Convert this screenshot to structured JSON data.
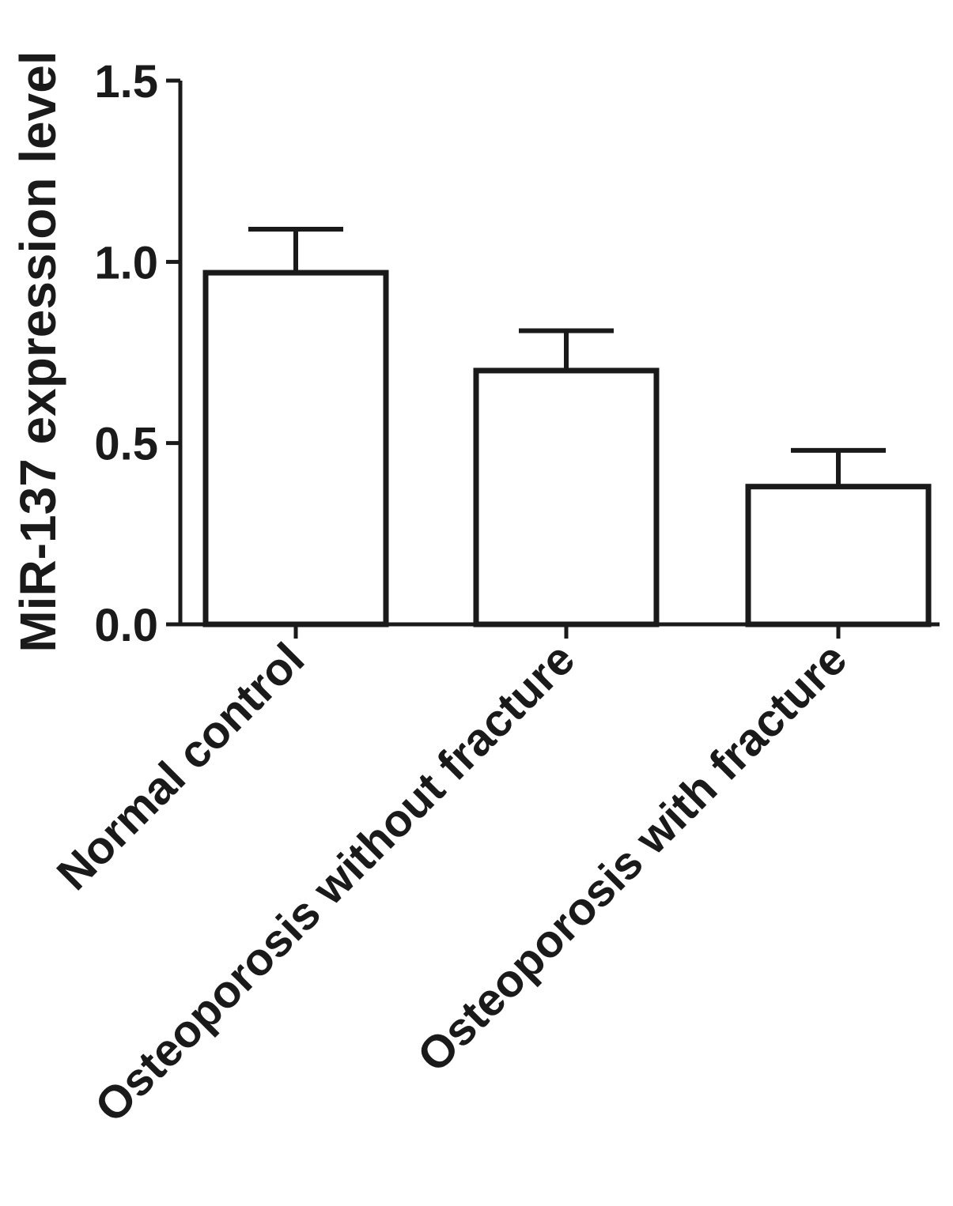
{
  "chart_data": {
    "type": "bar",
    "title": "",
    "xlabel": "",
    "ylabel": "MiR-137 expression level",
    "ylim": [
      0,
      1.5
    ],
    "yticks": [
      0.0,
      0.5,
      1.0,
      1.5
    ],
    "ytick_labels": [
      "0.0",
      "0.5",
      "1.0",
      "1.5"
    ],
    "categories": [
      "Normal control",
      "Osteoporosis without fracture",
      "Osteoporosis with fracture"
    ],
    "values": [
      0.97,
      0.7,
      0.38
    ],
    "errors": [
      0.12,
      0.11,
      0.1
    ],
    "grid": false,
    "legend": "none",
    "bar_fill": "#ffffff",
    "bar_stroke": "#1a1a1a"
  }
}
